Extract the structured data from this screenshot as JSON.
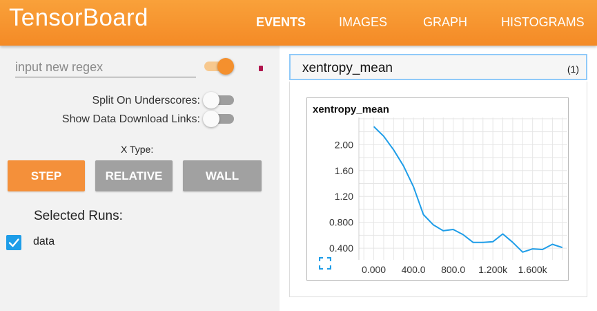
{
  "header": {
    "title": "TensorBoard",
    "tabs": [
      {
        "label": "EVENTS",
        "active": true
      },
      {
        "label": "IMAGES",
        "active": false
      },
      {
        "label": "GRAPH",
        "active": false
      },
      {
        "label": "HISTOGRAMS",
        "active": false
      }
    ]
  },
  "sidebar": {
    "regex": {
      "placeholder": "input new regex",
      "value": "",
      "enabled": true
    },
    "split_on_underscores": {
      "label": "Split On Underscores:",
      "on": false
    },
    "show_download_links": {
      "label": "Show Data Download Links:",
      "on": false
    },
    "x_type": {
      "label": "X Type:",
      "options": [
        "STEP",
        "RELATIVE",
        "WALL"
      ],
      "selected": "STEP"
    },
    "runs": {
      "label": "Selected Runs:",
      "items": [
        {
          "name": "data",
          "checked": true
        }
      ]
    }
  },
  "main": {
    "category": {
      "name": "xentropy_mean",
      "count": "(1)"
    }
  },
  "colors": {
    "accent": "#f4902e",
    "inactive_button": "#a1a1a1",
    "series_line": "#1e9de8",
    "checkbox": "#1e9de8",
    "selection_outline": "#90caf9"
  },
  "chart_data": {
    "type": "line",
    "title": "xentropy_mean",
    "xlabel": "",
    "ylabel": "",
    "x_tick_labels": [
      "0.000",
      "400.0",
      "800.0",
      "1.200k",
      "1.600k"
    ],
    "y_tick_labels": [
      "0.400",
      "0.800",
      "1.20",
      "1.60",
      "2.00"
    ],
    "x_ticks": [
      0,
      400,
      800,
      1200,
      1600
    ],
    "y_ticks": [
      0.4,
      0.8,
      1.2,
      1.6,
      2.0
    ],
    "xlim": [
      -150,
      1950
    ],
    "ylim": [
      0.22,
      2.42
    ],
    "grid": true,
    "series": [
      {
        "x": [
          0,
          100,
          200,
          300,
          400,
          500,
          600,
          700,
          800,
          900,
          1000,
          1100,
          1200,
          1300,
          1400,
          1500,
          1600,
          1700,
          1800,
          1900
        ],
        "y": [
          2.28,
          2.13,
          1.92,
          1.67,
          1.35,
          0.92,
          0.76,
          0.67,
          0.69,
          0.61,
          0.49,
          0.49,
          0.5,
          0.62,
          0.49,
          0.34,
          0.39,
          0.38,
          0.46,
          0.41
        ]
      }
    ]
  }
}
